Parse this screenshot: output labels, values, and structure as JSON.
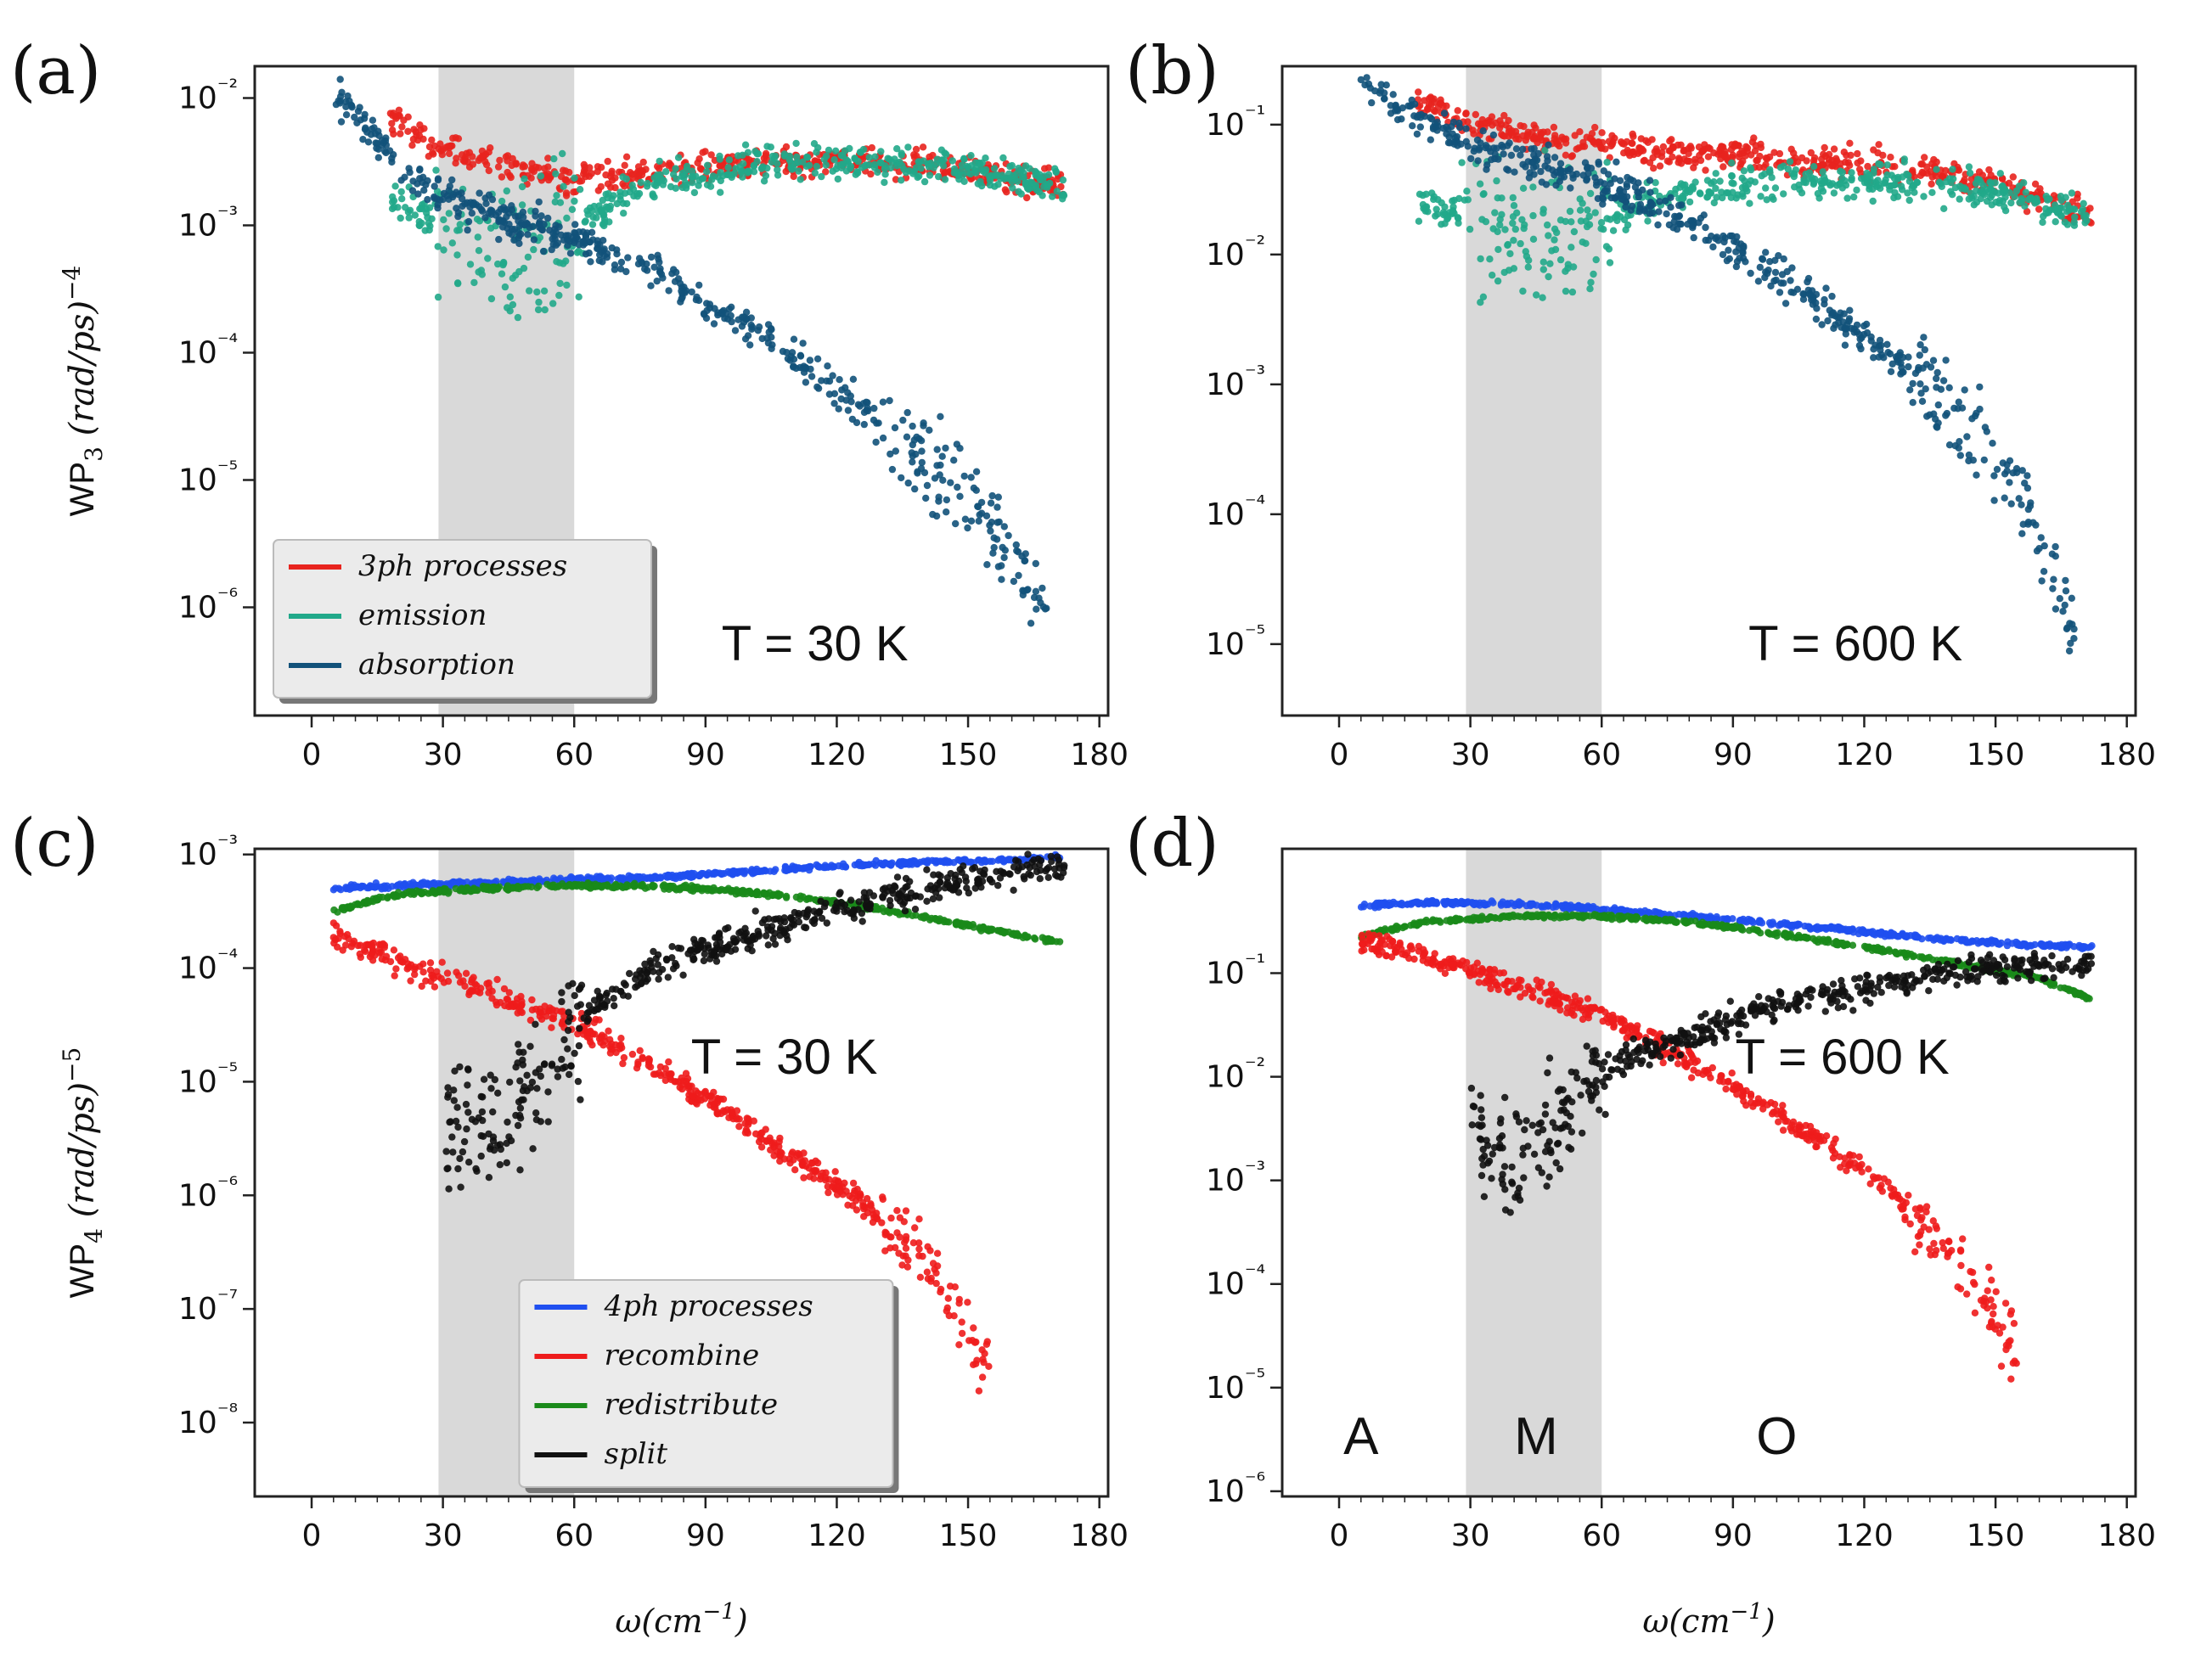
{
  "chart_data": [
    {
      "id": "a",
      "panel_label": "(a)",
      "type": "scatter",
      "yscale": "log",
      "ylabel_main": "WP",
      "ylabel_sub": "3",
      "ylabel_unit": "(rad/ps)",
      "ylabel_exp": "−4",
      "xlabel": "",
      "xlim": [
        -13,
        182
      ],
      "ylim_exp": [
        -6.85,
        -1.75
      ],
      "x_ticks": [
        0,
        30,
        60,
        90,
        120,
        150,
        180
      ],
      "y_tick_exps": [
        -6,
        -5,
        -4,
        -3,
        -2
      ],
      "shaded_region": [
        29,
        60
      ],
      "annotation": "T = 30 K",
      "legend_location": "lower-left",
      "legend": [
        {
          "label": "3ph processes",
          "color": "#e8241e"
        },
        {
          "label": "emission",
          "color": "#21a98a"
        },
        {
          "label": "absorption",
          "color": "#12527a"
        }
      ],
      "series": [
        {
          "name": "3ph processes",
          "color": "#e8241e",
          "x": [
            18,
            30,
            45,
            60,
            75,
            90,
            105,
            120,
            135,
            150,
            172
          ],
          "log10_y": [
            -2.15,
            -2.4,
            -2.55,
            -2.65,
            -2.6,
            -2.55,
            -2.5,
            -2.5,
            -2.5,
            -2.55,
            -2.7
          ],
          "scatter": 0.08
        },
        {
          "name": "emission",
          "color": "#21a98a",
          "x": [
            18,
            30,
            45,
            60,
            65,
            75,
            90,
            105,
            120,
            135,
            150,
            172
          ],
          "log10_y": [
            -2.8,
            -3.0,
            -3.3,
            -3.0,
            -2.9,
            -2.7,
            -2.6,
            -2.5,
            -2.5,
            -2.5,
            -2.55,
            -2.7
          ],
          "scatter": 0.1
        },
        {
          "name": "absorption",
          "color": "#12527a",
          "x": [
            5,
            15,
            30,
            45,
            60,
            75,
            90,
            105,
            120,
            135,
            150,
            160,
            168
          ],
          "log10_y": [
            -1.95,
            -2.35,
            -2.8,
            -2.95,
            -3.1,
            -3.3,
            -3.6,
            -3.9,
            -4.3,
            -4.7,
            -5.1,
            -5.6,
            -6.1
          ],
          "scatter": 0.1
        }
      ]
    },
    {
      "id": "b",
      "panel_label": "(b)",
      "type": "scatter",
      "yscale": "log",
      "ylabel_main": "",
      "xlabel": "",
      "xlim": [
        -13,
        182
      ],
      "ylim_exp": [
        -5.55,
        -0.55
      ],
      "x_ticks": [
        0,
        30,
        60,
        90,
        120,
        150,
        180
      ],
      "y_tick_exps": [
        -5,
        -4,
        -3,
        -2,
        -1
      ],
      "shaded_region": [
        29,
        60
      ],
      "annotation": "T = 600 K",
      "series": [
        {
          "name": "3ph processes",
          "color": "#e8241e",
          "x": [
            18,
            30,
            45,
            60,
            75,
            90,
            105,
            120,
            135,
            150,
            172
          ],
          "log10_y": [
            -0.8,
            -1.0,
            -1.1,
            -1.15,
            -1.2,
            -1.25,
            -1.28,
            -1.3,
            -1.35,
            -1.45,
            -1.7
          ],
          "scatter": 0.08
        },
        {
          "name": "emission",
          "color": "#21a98a",
          "x": [
            18,
            30,
            45,
            60,
            70,
            80,
            95,
            110,
            125,
            140,
            155,
            172
          ],
          "log10_y": [
            -1.6,
            -1.7,
            -1.9,
            -1.8,
            -1.6,
            -1.5,
            -1.45,
            -1.42,
            -1.45,
            -1.5,
            -1.55,
            -1.7
          ],
          "scatter": 0.1
        },
        {
          "name": "absorption",
          "color": "#12527a",
          "x": [
            5,
            15,
            30,
            45,
            60,
            75,
            90,
            105,
            120,
            135,
            150,
            160,
            168
          ],
          "log10_y": [
            -0.65,
            -0.9,
            -1.15,
            -1.3,
            -1.45,
            -1.65,
            -1.95,
            -2.25,
            -2.65,
            -3.0,
            -3.5,
            -4.2,
            -4.9
          ],
          "scatter": 0.1
        }
      ]
    },
    {
      "id": "c",
      "panel_label": "(c)",
      "type": "scatter",
      "yscale": "log",
      "ylabel_main": "WP",
      "ylabel_sub": "4",
      "ylabel_unit": "(rad/ps)",
      "ylabel_exp": "−5",
      "xlabel": "ω(cm",
      "xlabel_exp": "−1",
      "xlabel_close": ")",
      "xlim": [
        -13,
        182
      ],
      "ylim_exp": [
        -8.65,
        -2.95
      ],
      "x_ticks": [
        0,
        30,
        60,
        90,
        120,
        150,
        180
      ],
      "y_tick_exps": [
        -8,
        -7,
        -6,
        -5,
        -4,
        -3
      ],
      "shaded_region": [
        29,
        60
      ],
      "annotation": "T = 30 K",
      "legend_location": "lower-center",
      "legend": [
        {
          "label": "4ph processes",
          "color": "#1f4ff0"
        },
        {
          "label": "recombine",
          "color": "#ee1c1c"
        },
        {
          "label": "redistribute",
          "color": "#1a8a1a"
        },
        {
          "label": "split",
          "color": "#111111"
        }
      ],
      "series": [
        {
          "name": "4ph processes",
          "color": "#1f4ff0",
          "x": [
            5,
            20,
            40,
            60,
            80,
            100,
            120,
            140,
            160,
            172
          ],
          "log10_y": [
            -3.3,
            -3.27,
            -3.25,
            -3.22,
            -3.2,
            -3.15,
            -3.1,
            -3.07,
            -3.05,
            -3.02
          ],
          "scatter": 0.015
        },
        {
          "name": "redistribute",
          "color": "#1a8a1a",
          "x": [
            5,
            20,
            40,
            60,
            80,
            100,
            120,
            140,
            160,
            172
          ],
          "log10_y": [
            -3.5,
            -3.35,
            -3.3,
            -3.27,
            -3.28,
            -3.33,
            -3.42,
            -3.55,
            -3.7,
            -3.78
          ],
          "scatter": 0.015
        },
        {
          "name": "recombine",
          "color": "#ee1c1c",
          "x": [
            5,
            20,
            40,
            60,
            80,
            100,
            120,
            130,
            140,
            150,
            155
          ],
          "log10_y": [
            -3.7,
            -3.95,
            -4.2,
            -4.5,
            -4.9,
            -5.4,
            -5.9,
            -6.2,
            -6.6,
            -7.2,
            -7.6
          ],
          "scatter": 0.08
        },
        {
          "name": "split",
          "color": "#111111",
          "x": [
            30,
            40,
            50,
            60,
            70,
            80,
            100,
            120,
            140,
            160,
            172
          ],
          "log10_y": [
            -5.3,
            -5.4,
            -5.2,
            -4.5,
            -4.2,
            -3.95,
            -3.7,
            -3.5,
            -3.3,
            -3.15,
            -3.1
          ],
          "scatter": 0.1
        }
      ]
    },
    {
      "id": "d",
      "panel_label": "(d)",
      "type": "scatter",
      "yscale": "log",
      "ylabel_main": "",
      "xlabel": "ω(cm",
      "xlabel_exp": "−1",
      "xlabel_close": ")",
      "xlim": [
        -13,
        182
      ],
      "ylim_exp": [
        -6.05,
        0.2
      ],
      "x_ticks": [
        0,
        30,
        60,
        90,
        120,
        150,
        180
      ],
      "y_tick_exps": [
        -6,
        -5,
        -4,
        -3,
        -2,
        -1
      ],
      "shaded_region": [
        29,
        60
      ],
      "annotation": "T = 600 K",
      "region_labels": [
        {
          "text": "A",
          "x": 5
        },
        {
          "text": "M",
          "x": 45
        },
        {
          "text": "O",
          "x": 100
        }
      ],
      "series": [
        {
          "name": "4ph processes",
          "color": "#1f4ff0",
          "x": [
            5,
            20,
            40,
            60,
            80,
            100,
            120,
            140,
            160,
            172
          ],
          "log10_y": [
            -0.35,
            -0.32,
            -0.33,
            -0.38,
            -0.45,
            -0.52,
            -0.6,
            -0.68,
            -0.73,
            -0.75
          ],
          "scatter": 0.015
        },
        {
          "name": "redistribute",
          "color": "#1a8a1a",
          "x": [
            5,
            20,
            40,
            60,
            80,
            100,
            120,
            140,
            160,
            172
          ],
          "log10_y": [
            -0.65,
            -0.5,
            -0.45,
            -0.45,
            -0.5,
            -0.62,
            -0.75,
            -0.9,
            -1.05,
            -1.25
          ],
          "scatter": 0.015
        },
        {
          "name": "recombine",
          "color": "#ee1c1c",
          "x": [
            5,
            20,
            40,
            60,
            80,
            100,
            120,
            130,
            140,
            150,
            155
          ],
          "log10_y": [
            -0.7,
            -0.85,
            -1.1,
            -1.4,
            -1.85,
            -2.35,
            -2.9,
            -3.3,
            -3.7,
            -4.3,
            -4.7
          ],
          "scatter": 0.08
        },
        {
          "name": "split",
          "color": "#111111",
          "x": [
            30,
            40,
            50,
            60,
            70,
            80,
            100,
            120,
            140,
            160,
            172
          ],
          "log10_y": [
            -2.6,
            -2.8,
            -2.5,
            -1.9,
            -1.75,
            -1.6,
            -1.3,
            -1.15,
            -1.0,
            -0.95,
            -0.92
          ],
          "scatter": 0.1
        }
      ]
    }
  ]
}
